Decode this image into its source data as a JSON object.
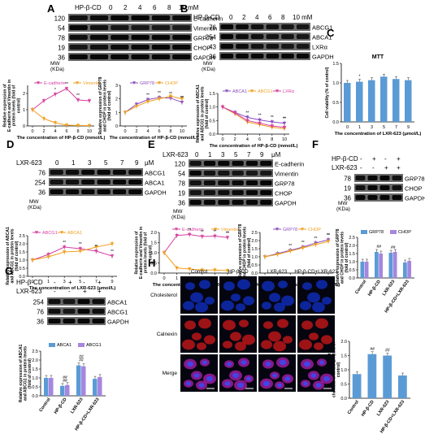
{
  "panels": {
    "A": {
      "letter": "A",
      "treatment_label": "HP-β-CD",
      "doses": [
        "0",
        "2",
        "4",
        "6",
        "8",
        "10 mM"
      ],
      "mw": [
        "120",
        "54",
        "78",
        "19",
        "36"
      ],
      "proteins": [
        "E-cadherin",
        "Vimentin",
        "GRP78",
        "CHOP",
        "GAPDH"
      ],
      "mw_label": "MW",
      "kda_label": "(KDa)"
    },
    "B": {
      "letter": "B",
      "treatment_label": "HP-β-CD",
      "doses": [
        "0",
        "2",
        "4",
        "6",
        "8",
        "10 mM"
      ],
      "mw": [
        "76",
        "254",
        "43",
        "36"
      ],
      "proteins": [
        "ABCG1",
        "ABCA1",
        "LXRα",
        "GAPDH"
      ],
      "mw_label": "MW",
      "kda_label": "(KDa)"
    },
    "C": {
      "letter": "C"
    },
    "D": {
      "letter": "D",
      "treatment_label": "LXR-623",
      "doses": [
        "0",
        "1",
        "3",
        "5",
        "7",
        "9"
      ],
      "unit": "μM",
      "mw": [
        "76",
        "254",
        "36"
      ],
      "proteins": [
        "ABCG1",
        "ABCA1",
        "GAPDH"
      ],
      "mw_label": "MW",
      "kda_label": "(KDa)"
    },
    "E": {
      "letter": "E",
      "treatment_label": "LXR-623",
      "doses": [
        "0",
        "1",
        "3",
        "5",
        "7",
        "9"
      ],
      "unit": "μM",
      "mw": [
        "120",
        "54",
        "78",
        "19",
        "36"
      ],
      "proteins": [
        "E-cadherin",
        "Vimentin",
        "GRP78",
        "CHOP",
        "GAPDH"
      ],
      "mw_label": "MW",
      "kda_label": "(KDa)"
    },
    "F": {
      "letter": "F",
      "row1_label": "HP-β-CD",
      "row1_signs": [
        "-",
        "+",
        "-",
        "+"
      ],
      "row2_label": "LXR-623",
      "row2_signs": [
        "-",
        "-",
        "+",
        "+"
      ],
      "mw": [
        "78",
        "19",
        "36"
      ],
      "proteins": [
        "GRP78",
        "CHOP",
        "GAPDH"
      ],
      "mw_label": "MW",
      "kda_label": "(KDa)"
    },
    "G": {
      "letter": "G",
      "row1_label": "HP-β-CD",
      "row1_signs": [
        "-",
        "+",
        "-",
        "+"
      ],
      "row2_label": "LXR-623",
      "row2_signs": [
        "-",
        "-",
        "+",
        "+"
      ],
      "mw": [
        "254",
        "76",
        "36"
      ],
      "proteins": [
        "ABCA1",
        "ABCG1",
        "GAPDH"
      ],
      "mw_label": "MW",
      "kda_label": "(KDa)"
    },
    "H": {
      "letter": "H",
      "columns": [
        "Control",
        "HP-β-CD",
        "LXR-623",
        "HP-β-CD+LXR-623"
      ],
      "rows": [
        "Cholesterol",
        "Calnexin",
        "Merge"
      ]
    }
  },
  "chart_data": [
    {
      "id": "A1",
      "type": "line",
      "categories": [
        "0",
        "2",
        "4",
        "6",
        "8",
        "10"
      ],
      "xlabel": "The concentration of HP-β-CD (mmol/L)",
      "ylabel": "Relative expression of E-cadherin and Vimentin in protein levels (fold of control)",
      "ylim": [
        0,
        2.5
      ],
      "yticks": [
        "0",
        "1",
        "2"
      ],
      "series": [
        {
          "name": "E-cadherin",
          "color": "#d6409f",
          "marker": "down-triangle",
          "values": [
            1.0,
            1.55,
            1.95,
            2.3,
            1.6,
            1.55
          ]
        },
        {
          "name": "Vimentin",
          "color": "#f0a020",
          "marker": "down-triangle",
          "values": [
            1.0,
            0.45,
            0.2,
            0.05,
            0.03,
            0.02
          ]
        }
      ],
      "sig": [
        "*",
        "**",
        "**"
      ]
    },
    {
      "id": "A2",
      "type": "line",
      "categories": [
        "0",
        "2",
        "4",
        "6",
        "8",
        "10"
      ],
      "xlabel": "The concentration of HP-β-CD (mmol/L)",
      "ylabel": "Relative expression of GRP78 and CHOP in protein levels (fold of control)",
      "ylim": [
        0,
        3
      ],
      "yticks": [
        "0",
        "1",
        "2",
        "3"
      ],
      "series": [
        {
          "name": "GRP78",
          "color": "#8a4fc0",
          "marker": "down-triangle",
          "values": [
            1.0,
            1.6,
            1.95,
            2.1,
            2.05,
            1.75
          ]
        },
        {
          "name": "CHOP",
          "color": "#f0a020",
          "marker": "down-triangle",
          "values": [
            1.0,
            1.45,
            1.8,
            2.0,
            2.2,
            2.0
          ]
        }
      ],
      "sig": [
        "**",
        "**",
        "**",
        "**",
        "**"
      ]
    },
    {
      "id": "B1",
      "type": "line",
      "categories": [
        "0",
        "2",
        "4",
        "6",
        "8",
        "10"
      ],
      "xlabel": "The concentration of HP-β-CD (mmol/L)",
      "ylabel": "Relative expression of ABCA1 and ABCG1 in protein levels (fold of control)",
      "ylim": [
        0,
        1.5
      ],
      "yticks": [
        "0.0",
        "0.5",
        "1.0",
        "1.5"
      ],
      "series": [
        {
          "name": "ABCA1",
          "color": "#8a4fc0",
          "marker": "down-triangle",
          "values": [
            1.0,
            0.8,
            0.62,
            0.52,
            0.45,
            0.4
          ]
        },
        {
          "name": "ABCG1",
          "color": "#f0a020",
          "marker": "down-triangle",
          "values": [
            1.0,
            0.75,
            0.45,
            0.35,
            0.25,
            0.2
          ]
        },
        {
          "name": "LXRα",
          "color": "#d6409f",
          "marker": "down-triangle",
          "values": [
            1.0,
            0.78,
            0.5,
            0.4,
            0.3,
            0.25
          ]
        }
      ],
      "sig": [
        "**",
        "**",
        "**",
        "**",
        "**"
      ]
    },
    {
      "id": "C",
      "type": "bar",
      "title": "MTT",
      "categories": [
        "0",
        "1",
        "3",
        "5",
        "7",
        "9"
      ],
      "values": [
        1.0,
        1.03,
        1.07,
        1.16,
        1.1,
        1.07
      ],
      "xlabel": "The concentration of LXR-623 (μmol/L)",
      "ylabel": "Cell viability (% of control)",
      "ylim": [
        0,
        1.5
      ],
      "yticks": [
        "0.0",
        "0.5",
        "1.0",
        "1.5"
      ],
      "color": "#5b9bd5",
      "sig": [
        "*"
      ]
    },
    {
      "id": "D1",
      "type": "line",
      "categories": [
        "0",
        "1",
        "3",
        "5",
        "7",
        "9"
      ],
      "xlabel": "The concentration of LXR-623 (μmol/L)",
      "ylabel": "Relative expression of ABCA1 and ABCG1 in protein levels (fold of control)",
      "ylim": [
        0,
        2.5
      ],
      "yticks": [
        "0.0",
        "0.5",
        "1.0",
        "1.5",
        "2.0",
        "2.5"
      ],
      "series": [
        {
          "name": "ABCG1",
          "color": "#d6409f",
          "marker": "down-triangle",
          "values": [
            1.0,
            1.35,
            1.8,
            1.7,
            1.55,
            1.25
          ]
        },
        {
          "name": "ABCA1",
          "color": "#f0a020",
          "marker": "down-triangle",
          "values": [
            1.0,
            1.2,
            1.5,
            1.55,
            1.8,
            2.0
          ]
        }
      ],
      "sig": [
        "**",
        "**",
        "**",
        "**"
      ]
    },
    {
      "id": "E1",
      "type": "line",
      "categories": [
        "0",
        "1",
        "3",
        "5",
        "7",
        "9"
      ],
      "xlabel": "The concentration of LXR-623 (μmol/L)",
      "ylabel": "Relative expression of E-cadherin and Vimentin in protein levels (fold of control)",
      "ylim": [
        0,
        2.0
      ],
      "yticks": [
        "0.0",
        "0.5",
        "1.0",
        "1.5",
        "2.0"
      ],
      "series": [
        {
          "name": "E-cadherin",
          "color": "#d6409f",
          "marker": "down-triangle",
          "values": [
            1.0,
            1.85,
            1.9,
            1.8,
            1.82,
            1.75
          ]
        },
        {
          "name": "Vimentin",
          "color": "#f0a020",
          "marker": "down-triangle",
          "values": [
            1.0,
            0.25,
            0.2,
            0.15,
            0.15,
            0.12
          ]
        }
      ],
      "sig": [
        "**",
        "**",
        "**",
        "**",
        "**"
      ]
    },
    {
      "id": "E2",
      "type": "line",
      "categories": [
        "0",
        "1",
        "3",
        "5",
        "7",
        "9"
      ],
      "xlabel": "The concentration of LXR-623 (μmol/L)",
      "ylabel": "Relative expression of GRP78 and CHOP in protein levels (fold of control)",
      "ylim": [
        0,
        2.5
      ],
      "yticks": [
        "0.0",
        "0.5",
        "1.0",
        "1.5",
        "2.0",
        "2.5"
      ],
      "series": [
        {
          "name": "GRP78",
          "color": "#8a4fc0",
          "marker": "down-triangle",
          "values": [
            1.0,
            1.2,
            1.4,
            1.6,
            1.85,
            2.05
          ]
        },
        {
          "name": "CHOP",
          "color": "#f0a020",
          "marker": "down-triangle",
          "values": [
            1.0,
            1.15,
            1.35,
            1.55,
            1.75,
            1.95
          ]
        }
      ],
      "sig": [
        "**",
        "**",
        "**",
        "**",
        "**"
      ]
    },
    {
      "id": "F1",
      "type": "bar",
      "categories": [
        "Control",
        "HP-β-CD",
        "LXR-623",
        "HP-β-CD+LXR-623"
      ],
      "series": [
        {
          "name": "GRP78",
          "color": "#5b9bd5",
          "values": [
            1.0,
            1.6,
            1.55,
            0.95
          ]
        },
        {
          "name": "CHOP",
          "color": "#a686e0",
          "values": [
            1.0,
            1.5,
            1.6,
            1.05
          ]
        }
      ],
      "ylabel": "Relative expression of GRP78 and CHOP in protein levels (fold of control)",
      "ylim": [
        0,
        2.5
      ],
      "yticks": [
        "0.0",
        "0.5",
        "1.0",
        "1.5",
        "2.0",
        "2.5"
      ],
      "sig": [
        "##",
        "##"
      ]
    },
    {
      "id": "G1",
      "type": "bar",
      "categories": [
        "Control",
        "HP-β-CD",
        "LXR-623",
        "HP-β-CD+LXR-623"
      ],
      "series": [
        {
          "name": "ABCA1",
          "color": "#5b9bd5",
          "values": [
            1.0,
            0.55,
            1.7,
            0.95
          ]
        },
        {
          "name": "ABCG1",
          "color": "#a686e0",
          "values": [
            1.0,
            0.6,
            1.65,
            1.05
          ]
        }
      ],
      "ylabel": "Relative expression of ABCA1 and ABCG1 in protein levels (fold of control)",
      "ylim": [
        0,
        2.5
      ],
      "yticks": [
        "0.0",
        "0.5",
        "1.0",
        "1.5",
        "2.0",
        "2.5"
      ],
      "sig": [
        "##",
        "##",
        "##",
        "##"
      ]
    },
    {
      "id": "H1",
      "type": "bar",
      "categories": [
        "Control",
        "HP-β-CD",
        "LXR-623",
        "HP-β-CD+LXR-623"
      ],
      "values": [
        0.85,
        1.55,
        1.5,
        0.8
      ],
      "ylabel": "The relative content of cholesterol in the ER (fold of control)",
      "ylim": [
        0,
        2.0
      ],
      "yticks": [
        "0.0",
        "0.5",
        "1.0",
        "1.5",
        "2.0"
      ],
      "color": "#5b9bd5",
      "sig": [
        "##",
        "##"
      ]
    }
  ]
}
